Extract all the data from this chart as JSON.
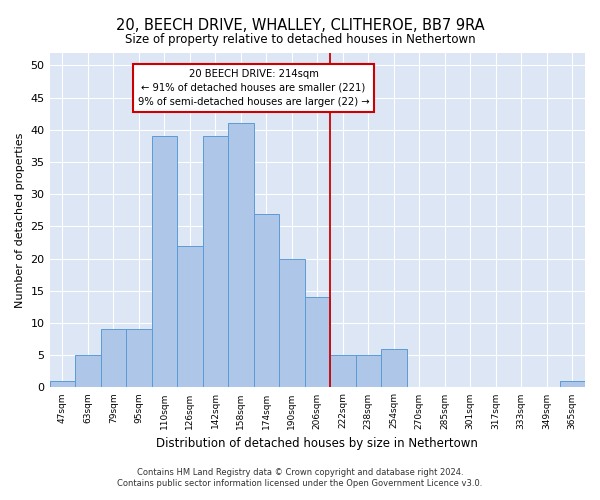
{
  "title": "20, BEECH DRIVE, WHALLEY, CLITHEROE, BB7 9RA",
  "subtitle": "Size of property relative to detached houses in Nethertown",
  "xlabel": "Distribution of detached houses by size in Nethertown",
  "ylabel": "Number of detached properties",
  "categories": [
    "47sqm",
    "63sqm",
    "79sqm",
    "95sqm",
    "110sqm",
    "126sqm",
    "142sqm",
    "158sqm",
    "174sqm",
    "190sqm",
    "206sqm",
    "222sqm",
    "238sqm",
    "254sqm",
    "270sqm",
    "285sqm",
    "301sqm",
    "317sqm",
    "333sqm",
    "349sqm",
    "365sqm"
  ],
  "values": [
    1,
    5,
    9,
    9,
    39,
    22,
    39,
    41,
    27,
    20,
    14,
    5,
    5,
    6,
    0,
    0,
    0,
    0,
    0,
    0,
    1
  ],
  "bar_color": "#aec6e8",
  "bar_edge_color": "#5b9bd5",
  "vline_x": 10.5,
  "vline_color": "#cc0000",
  "annotation_line1": "20 BEECH DRIVE: 214sqm",
  "annotation_line2": "← 91% of detached houses are smaller (221)",
  "annotation_line3": "9% of semi-detached houses are larger (22) →",
  "annotation_box_color": "#cc0000",
  "ylim": [
    0,
    52
  ],
  "yticks": [
    0,
    5,
    10,
    15,
    20,
    25,
    30,
    35,
    40,
    45,
    50
  ],
  "bg_color": "#dce6f5",
  "footer1": "Contains HM Land Registry data © Crown copyright and database right 2024.",
  "footer2": "Contains public sector information licensed under the Open Government Licence v3.0."
}
